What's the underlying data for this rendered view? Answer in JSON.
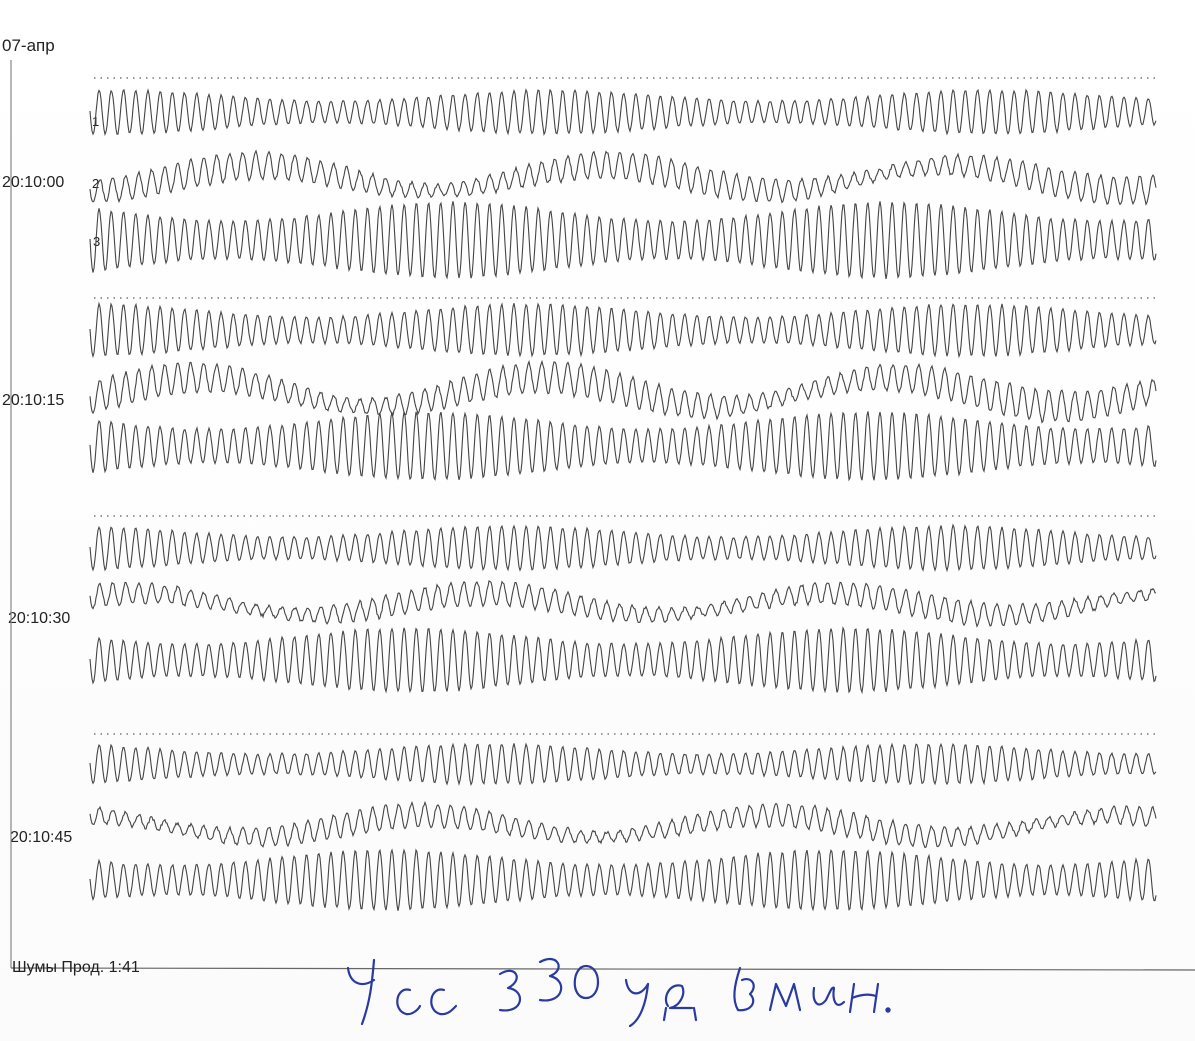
{
  "header": {
    "date": "07-апр"
  },
  "time_marks": [
    "20:10:00",
    "20:10:15",
    "20:10:30",
    "20:10:45"
  ],
  "lead_labels": [
    "1",
    "2",
    "3"
  ],
  "footer": {
    "label": "Шумы Прод. 1:41"
  },
  "handwritten_note": "Чсс 330 уд в мин.",
  "colors": {
    "trace": "#444444",
    "ink": "#2a3aa0",
    "frame": "#888888"
  }
}
